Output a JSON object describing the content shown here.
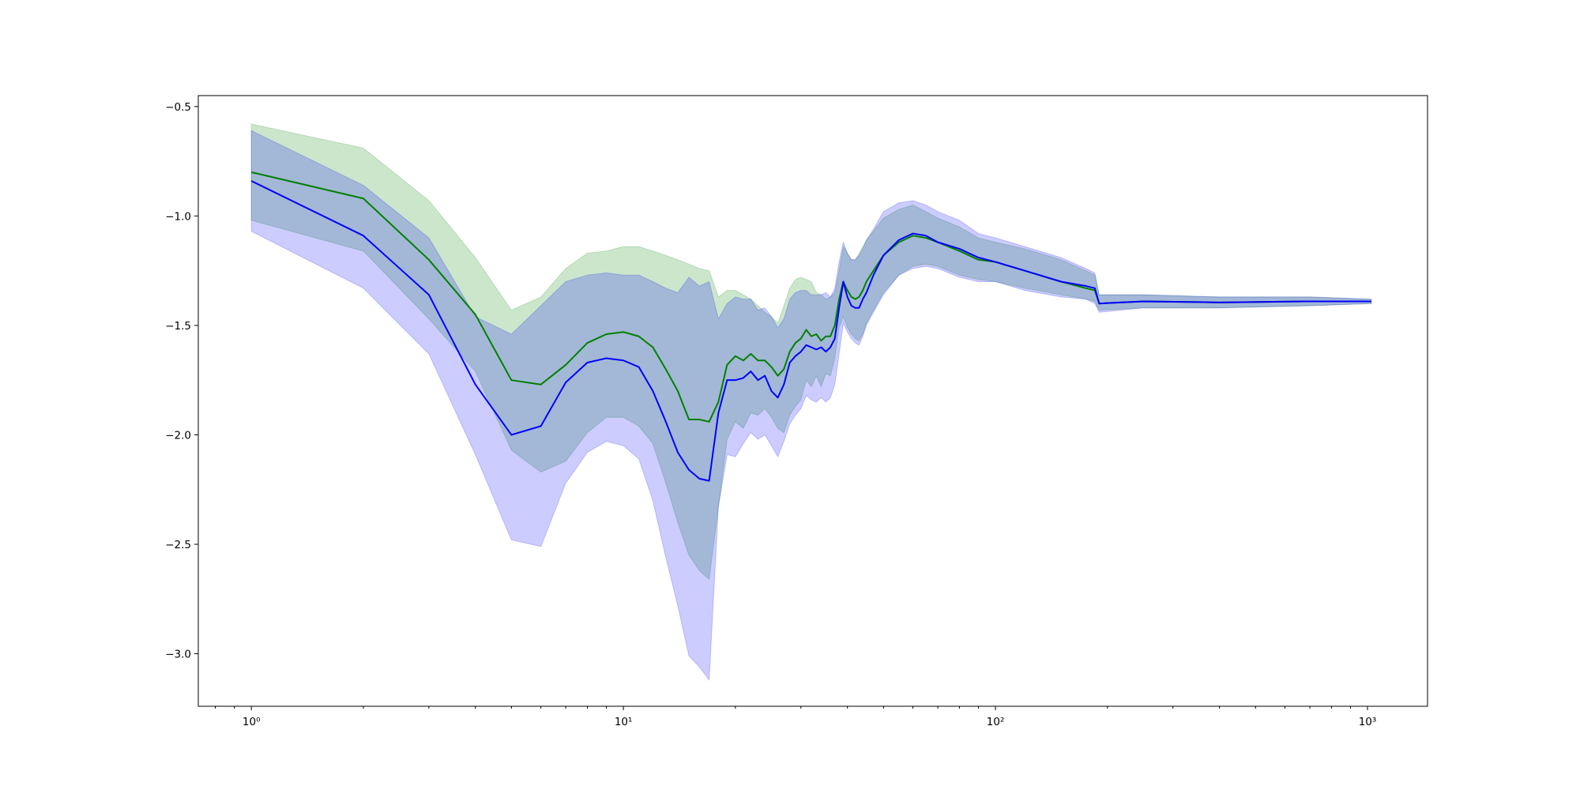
{
  "chart_data": {
    "type": "line",
    "title": "",
    "xlabel": "",
    "ylabel": "",
    "xscale": "log",
    "xlim": [
      0.72,
      1450
    ],
    "ylim": [
      -3.24,
      -0.45
    ],
    "x_ticks": [
      {
        "value": 1,
        "label": "10⁰"
      },
      {
        "value": 10,
        "label": "10¹"
      },
      {
        "value": 100,
        "label": "10²"
      },
      {
        "value": 1000,
        "label": "10³"
      }
    ],
    "y_ticks": [
      {
        "value": -0.5,
        "label": "−0.5"
      },
      {
        "value": -1.0,
        "label": "−1.0"
      },
      {
        "value": -1.5,
        "label": "−1.5"
      },
      {
        "value": -2.0,
        "label": "−2.0"
      },
      {
        "value": -2.5,
        "label": "−2.5"
      },
      {
        "value": -3.0,
        "label": "−3.0"
      }
    ],
    "grid": false,
    "legend": "none",
    "series": [
      {
        "color": "#008000",
        "band_fill": "#008000",
        "band_opacity": 0.2,
        "x": [
          1,
          2,
          3,
          4,
          5,
          6,
          7,
          8,
          9,
          10,
          11,
          12,
          13,
          14,
          15,
          16,
          17,
          18,
          19,
          20,
          21,
          22,
          23,
          24,
          25,
          26,
          27,
          28,
          29,
          30,
          31,
          32,
          33,
          34,
          35,
          36,
          37,
          38,
          39,
          40,
          41,
          42,
          43,
          44,
          45,
          47,
          50,
          55,
          60,
          65,
          70,
          80,
          90,
          100,
          120,
          150,
          175,
          185,
          190,
          250,
          400,
          700,
          1024
        ],
        "y": [
          -0.8,
          -0.92,
          -1.2,
          -1.45,
          -1.75,
          -1.77,
          -1.68,
          -1.58,
          -1.54,
          -1.53,
          -1.55,
          -1.6,
          -1.7,
          -1.8,
          -1.93,
          -1.93,
          -1.94,
          -1.85,
          -1.68,
          -1.64,
          -1.66,
          -1.63,
          -1.66,
          -1.66,
          -1.69,
          -1.73,
          -1.7,
          -1.62,
          -1.58,
          -1.56,
          -1.52,
          -1.55,
          -1.54,
          -1.57,
          -1.55,
          -1.55,
          -1.5,
          -1.38,
          -1.3,
          -1.34,
          -1.37,
          -1.38,
          -1.37,
          -1.34,
          -1.3,
          -1.25,
          -1.18,
          -1.12,
          -1.09,
          -1.1,
          -1.12,
          -1.16,
          -1.2,
          -1.21,
          -1.25,
          -1.3,
          -1.33,
          -1.34,
          -1.4,
          -1.39,
          -1.395,
          -1.39,
          -1.39
        ],
        "upper": [
          -0.58,
          -0.69,
          -0.93,
          -1.19,
          -1.43,
          -1.37,
          -1.24,
          -1.17,
          -1.16,
          -1.14,
          -1.14,
          -1.16,
          -1.18,
          -1.2,
          -1.22,
          -1.24,
          -1.25,
          -1.37,
          -1.34,
          -1.34,
          -1.36,
          -1.38,
          -1.41,
          -1.44,
          -1.46,
          -1.49,
          -1.41,
          -1.33,
          -1.29,
          -1.28,
          -1.29,
          -1.3,
          -1.35,
          -1.36,
          -1.38,
          -1.37,
          -1.35,
          -1.25,
          -1.14,
          -1.17,
          -1.2,
          -1.2,
          -1.17,
          -1.14,
          -1.11,
          -1.07,
          -1.01,
          -0.97,
          -0.95,
          -0.98,
          -1.01,
          -1.05,
          -1.1,
          -1.12,
          -1.15,
          -1.2,
          -1.25,
          -1.27,
          -1.36,
          -1.36,
          -1.37,
          -1.37,
          -1.38
        ],
        "lower": [
          -1.02,
          -1.16,
          -1.47,
          -1.71,
          -2.07,
          -2.17,
          -2.12,
          -1.99,
          -1.92,
          -1.92,
          -1.96,
          -2.04,
          -2.22,
          -2.4,
          -2.55,
          -2.62,
          -2.66,
          -2.33,
          -2.02,
          -1.94,
          -1.97,
          -1.9,
          -1.91,
          -1.88,
          -1.92,
          -1.97,
          -1.99,
          -1.91,
          -1.87,
          -1.84,
          -1.75,
          -1.78,
          -1.73,
          -1.78,
          -1.72,
          -1.73,
          -1.65,
          -1.51,
          -1.46,
          -1.51,
          -1.54,
          -1.56,
          -1.57,
          -1.54,
          -1.49,
          -1.43,
          -1.35,
          -1.27,
          -1.23,
          -1.22,
          -1.23,
          -1.27,
          -1.29,
          -1.3,
          -1.33,
          -1.36,
          -1.38,
          -1.39,
          -1.43,
          -1.42,
          -1.42,
          -1.41,
          -1.4
        ]
      },
      {
        "color": "#0000ff",
        "band_fill": "#0000ff",
        "band_opacity": 0.2,
        "x": [
          1,
          2,
          3,
          4,
          5,
          6,
          7,
          8,
          9,
          10,
          11,
          12,
          13,
          14,
          15,
          16,
          17,
          18,
          19,
          20,
          21,
          22,
          23,
          24,
          25,
          26,
          27,
          28,
          29,
          30,
          31,
          32,
          33,
          34,
          35,
          36,
          37,
          38,
          39,
          40,
          41,
          42,
          43,
          44,
          45,
          47,
          50,
          55,
          60,
          65,
          70,
          80,
          90,
          100,
          120,
          150,
          175,
          185,
          190,
          250,
          400,
          700,
          1024
        ],
        "y": [
          -0.84,
          -1.09,
          -1.36,
          -1.77,
          -2.0,
          -1.96,
          -1.76,
          -1.67,
          -1.65,
          -1.66,
          -1.69,
          -1.8,
          -1.94,
          -2.08,
          -2.16,
          -2.2,
          -2.21,
          -1.9,
          -1.75,
          -1.75,
          -1.74,
          -1.71,
          -1.75,
          -1.73,
          -1.8,
          -1.83,
          -1.77,
          -1.67,
          -1.64,
          -1.62,
          -1.59,
          -1.6,
          -1.61,
          -1.6,
          -1.62,
          -1.6,
          -1.56,
          -1.42,
          -1.3,
          -1.37,
          -1.41,
          -1.42,
          -1.42,
          -1.38,
          -1.35,
          -1.27,
          -1.18,
          -1.11,
          -1.08,
          -1.09,
          -1.12,
          -1.15,
          -1.19,
          -1.21,
          -1.25,
          -1.3,
          -1.32,
          -1.33,
          -1.4,
          -1.39,
          -1.395,
          -1.39,
          -1.39
        ],
        "upper": [
          -0.61,
          -0.86,
          -1.1,
          -1.46,
          -1.54,
          -1.41,
          -1.3,
          -1.27,
          -1.26,
          -1.27,
          -1.27,
          -1.3,
          -1.33,
          -1.35,
          -1.28,
          -1.32,
          -1.3,
          -1.47,
          -1.4,
          -1.37,
          -1.38,
          -1.38,
          -1.43,
          -1.42,
          -1.46,
          -1.51,
          -1.47,
          -1.38,
          -1.35,
          -1.34,
          -1.34,
          -1.36,
          -1.36,
          -1.36,
          -1.35,
          -1.37,
          -1.33,
          -1.21,
          -1.12,
          -1.17,
          -1.2,
          -1.2,
          -1.18,
          -1.15,
          -1.11,
          -1.06,
          -0.98,
          -0.94,
          -0.93,
          -0.95,
          -0.98,
          -1.02,
          -1.08,
          -1.1,
          -1.14,
          -1.19,
          -1.24,
          -1.26,
          -1.36,
          -1.36,
          -1.37,
          -1.37,
          -1.38
        ],
        "lower": [
          -1.07,
          -1.33,
          -1.63,
          -2.09,
          -2.48,
          -2.51,
          -2.22,
          -2.08,
          -2.03,
          -2.05,
          -2.11,
          -2.3,
          -2.56,
          -2.78,
          -3.01,
          -3.06,
          -3.12,
          -2.33,
          -2.09,
          -2.1,
          -2.04,
          -1.99,
          -2.02,
          -2.0,
          -2.05,
          -2.1,
          -2.03,
          -1.95,
          -1.91,
          -1.88,
          -1.82,
          -1.84,
          -1.85,
          -1.83,
          -1.85,
          -1.83,
          -1.77,
          -1.63,
          -1.49,
          -1.53,
          -1.56,
          -1.58,
          -1.59,
          -1.55,
          -1.5,
          -1.44,
          -1.36,
          -1.27,
          -1.24,
          -1.23,
          -1.24,
          -1.28,
          -1.3,
          -1.3,
          -1.34,
          -1.37,
          -1.38,
          -1.4,
          -1.44,
          -1.42,
          -1.42,
          -1.41,
          -1.4
        ]
      }
    ]
  }
}
